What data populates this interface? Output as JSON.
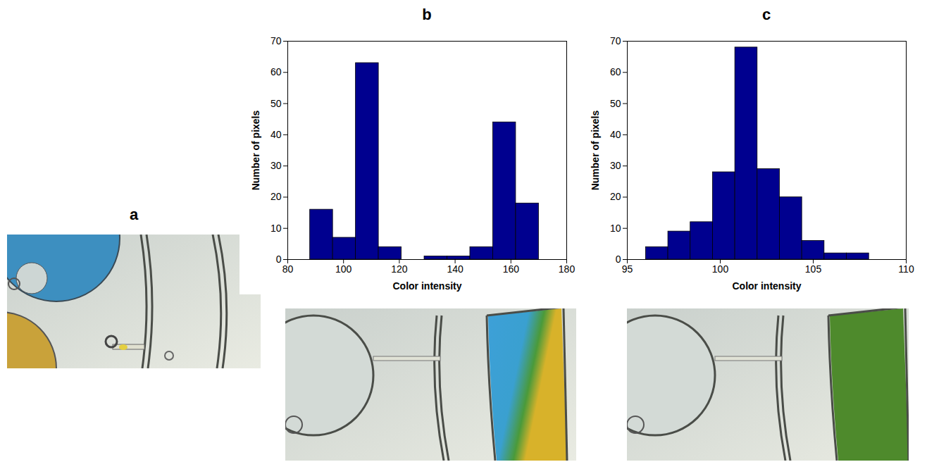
{
  "chart_data": [
    {
      "type": "histogram",
      "title": "b",
      "x_label": "Color intensity",
      "y_label": "Number of pixels",
      "bins": [
        88,
        96.2,
        104.4,
        112.6,
        120.8,
        129,
        137.2,
        145.4,
        153.6,
        161.8,
        170
      ],
      "values": [
        16,
        7,
        63,
        4,
        0,
        1,
        1,
        4,
        44,
        18
      ],
      "color": "#00008f",
      "xlim": [
        80,
        180
      ],
      "xticks": [
        80,
        100,
        120,
        140,
        160,
        180
      ],
      "ylim": [
        0,
        70
      ],
      "yticks": [
        0,
        10,
        20,
        30,
        40,
        50,
        60,
        70
      ],
      "grid": false
    },
    {
      "type": "histogram",
      "title": "c",
      "x_label": "Color intensity",
      "y_label": "Number of pixels",
      "bins": [
        96,
        97.2,
        98.4,
        99.6,
        100.8,
        102,
        103.2,
        104.4,
        105.6,
        106.8,
        108
      ],
      "values": [
        4,
        9,
        12,
        28,
        68,
        29,
        20,
        6,
        2,
        2
      ],
      "color": "#00008f",
      "xlim": [
        95,
        110
      ],
      "xticks": [
        95,
        100,
        105,
        110
      ],
      "ylim": [
        0,
        70
      ],
      "yticks": [
        0,
        10,
        20,
        30,
        40,
        50,
        60,
        70
      ],
      "grid": false
    }
  ],
  "panel_a": {
    "label": "a"
  }
}
